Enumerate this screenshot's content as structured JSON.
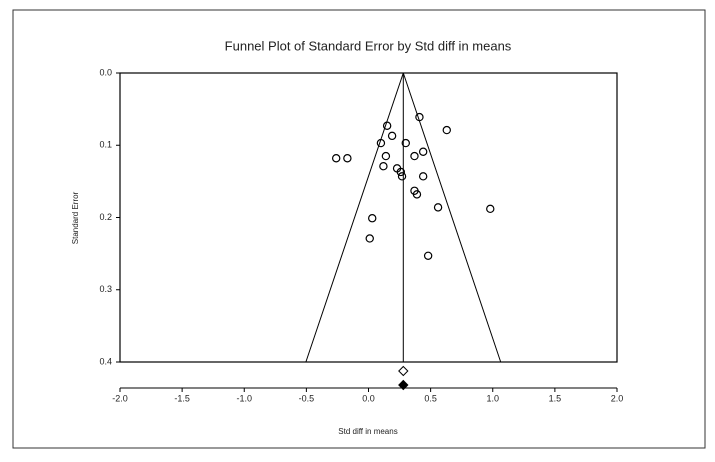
{
  "chart_data": {
    "type": "scatter",
    "title": "Funnel Plot of Standard Error by Std diff in means",
    "x_label": "Std diff in means",
    "y_label": "Standard Error",
    "x": [
      0.41,
      0.63,
      0.15,
      0.19,
      0.1,
      0.3,
      0.44,
      0.37,
      0.14,
      -0.26,
      -0.17,
      0.12,
      0.23,
      0.26,
      0.27,
      0.44,
      0.37,
      0.39,
      0.56,
      0.98,
      0.03,
      0.01,
      0.48
    ],
    "values": [
      0.061,
      0.079,
      0.073,
      0.087,
      0.097,
      0.097,
      0.109,
      0.115,
      0.115,
      0.118,
      0.118,
      0.129,
      0.132,
      0.137,
      0.143,
      0.143,
      0.163,
      0.168,
      0.186,
      0.188,
      0.201,
      0.229,
      0.253
    ],
    "color": "#000000",
    "summary_observed": 0.28,
    "summary_adjusted": 0.28,
    "xlim": [
      -2.0,
      2.0
    ],
    "ylim": [
      0.4,
      0.0
    ],
    "xticks": [
      {
        "value": -2,
        "label": "-2.0"
      },
      -1.5,
      {
        "value": -1,
        "label": "-1.0"
      },
      -0.5,
      {
        "value": 0,
        "label": "0.0"
      },
      0.5,
      {
        "value": 1,
        "label": "1.0"
      },
      1.5,
      {
        "value": 2,
        "label": "2.0"
      }
    ],
    "yticks": [
      {
        "value": 0,
        "label": "0.0"
      },
      0.1,
      0.2,
      0.3,
      0.4
    ]
  }
}
